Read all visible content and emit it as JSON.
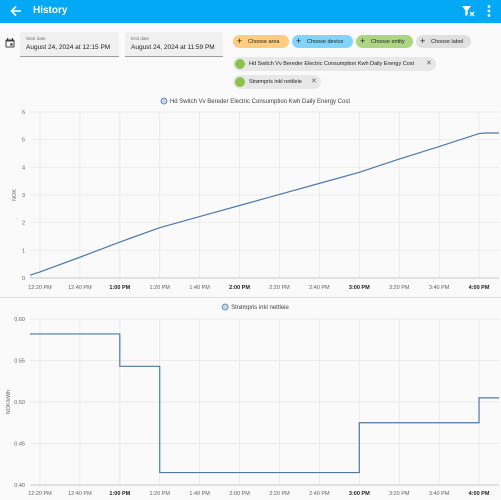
{
  "appbar": {
    "title": "History",
    "bg": "#03a9f4"
  },
  "dates": {
    "start": {
      "label": "Start date",
      "value": "August 24, 2024 at 12:15 PM"
    },
    "end": {
      "label": "End date",
      "value": "August 24, 2024 at 11:59 PM"
    }
  },
  "filters": {
    "area": {
      "label": "Choose area",
      "color": "#ffcc80"
    },
    "device": {
      "label": "Choose device",
      "color": "#81d4fa"
    },
    "entity": {
      "label": "Choose entity",
      "color": "#aed581"
    },
    "label": {
      "label": "Choose label",
      "color": "#e0e0e0"
    }
  },
  "selected": [
    {
      "label": "Hd Switch Vv Bereder Electric Consumption Kwh Daily Energy Cost",
      "icon": "device-icon"
    },
    {
      "label": "Strømpris inkl nettleie",
      "icon": "entity-icon"
    }
  ],
  "chart_data": [
    {
      "type": "line",
      "legend": "Hd Switch Vv Bereder Electric Consumption Kwh Daily Energy Cost",
      "ylabel": "NOK",
      "ylim": [
        0,
        6
      ],
      "yticks": [
        "0",
        "1",
        "2",
        "3",
        "4",
        "5",
        "6"
      ],
      "xticks": [
        "12:20 PM",
        "12:40 PM",
        "1:00 PM",
        "1:20 PM",
        "1:40 PM",
        "2:00 PM",
        "2:20 PM",
        "2:40 PM",
        "3:00 PM",
        "3:20 PM",
        "3:40 PM",
        "4:00 PM"
      ],
      "xticks_bold": [
        "1:00 PM",
        "2:00 PM",
        "3:00 PM",
        "4:00 PM"
      ],
      "x_minutes_range": [
        15,
        250
      ],
      "color": "#4e79a7",
      "series": [
        {
          "x_minutes": [
            15,
            20,
            40,
            60,
            80,
            100,
            120,
            140,
            160,
            180,
            200,
            220,
            240,
            243,
            250
          ],
          "values": [
            0.1,
            0.22,
            0.75,
            1.3,
            1.82,
            2.22,
            2.62,
            3.02,
            3.42,
            3.82,
            4.3,
            4.75,
            5.22,
            5.24,
            5.24
          ]
        }
      ]
    },
    {
      "type": "line",
      "legend": "Strømpris inkl nettleie",
      "ylabel": "NOK/kWh",
      "ylim": [
        0.4,
        0.6
      ],
      "yticks": [
        "0.40",
        "0.45",
        "0.50",
        "0.55",
        "0.60"
      ],
      "xticks": [
        "12:20 PM",
        "12:40 PM",
        "1:00 PM",
        "1:20 PM",
        "1:40 PM",
        "2:00 PM",
        "2:20 PM",
        "2:40 PM",
        "3:00 PM",
        "3:20 PM",
        "3:40 PM",
        "4:00 PM"
      ],
      "xticks_bold": [
        "1:00 PM",
        "3:00 PM",
        "4:00 PM"
      ],
      "x_minutes_range": [
        15,
        250
      ],
      "color": "#4e79a7",
      "series": [
        {
          "x_minutes": [
            15,
            60,
            60,
            80,
            80,
            180,
            180,
            240,
            240,
            250
          ],
          "values": [
            0.582,
            0.582,
            0.543,
            0.543,
            0.415,
            0.415,
            0.475,
            0.475,
            0.505,
            0.505
          ]
        }
      ]
    }
  ]
}
